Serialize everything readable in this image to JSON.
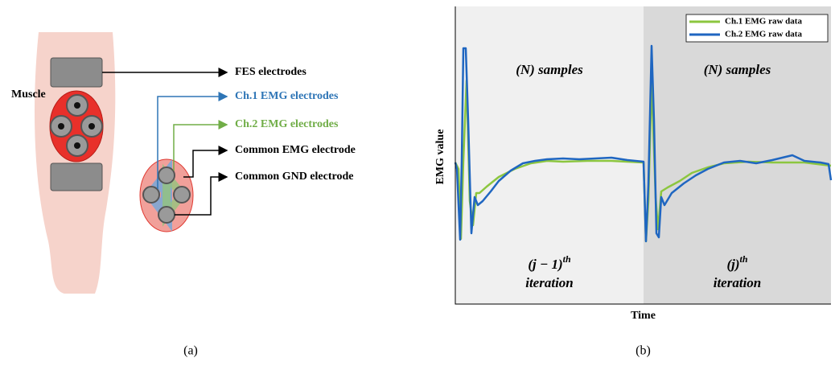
{
  "panel_a": {
    "label": "(a)",
    "muscle": "Muscle",
    "callouts": [
      {
        "text": "FES electrodes",
        "color": "#000000"
      },
      {
        "text": "Ch.1 EMG electrodes",
        "color": "#2e75b6"
      },
      {
        "text": "Ch.2 EMG electrodes",
        "color": "#70ad47"
      },
      {
        "text": "Common EMG electrode",
        "color": "#000000"
      },
      {
        "text": "Common GND electrode",
        "color": "#000000"
      }
    ]
  },
  "chart_data": {
    "type": "line",
    "panel_label": "(b)",
    "xlabel": "Time",
    "ylabel": "EMG value",
    "xlim": [
      0,
      467
    ],
    "ylim": [
      0,
      370
    ],
    "legend": "upper right",
    "iterations": [
      {
        "start": 0,
        "end": 234,
        "color": "#f0f0f0",
        "samples": "(N) samples",
        "index": "(j − 1)",
        "superscript": "th",
        "word": "iteration"
      },
      {
        "start": 234,
        "end": 467,
        "color": "#d9d9d9",
        "samples": "(N) samples",
        "index": "(j)",
        "superscript": "th",
        "word": "iteration"
      }
    ],
    "series": [
      {
        "name": "Ch.1 EMG raw data",
        "color": "#8cc63f",
        "x": [
          0,
          4,
          7,
          10,
          14,
          18,
          22,
          26,
          30,
          39,
          54,
          74,
          94,
          114,
          134,
          164,
          194,
          234,
          237,
          240,
          244,
          249,
          252,
          256,
          264,
          279,
          294,
          314,
          334,
          364,
          394,
          434,
          467
        ],
        "values": [
          176,
          168,
          81,
          178,
          278,
          128,
          98,
          138,
          138,
          146,
          158,
          168,
          175,
          178,
          177,
          178,
          178,
          176,
          78,
          128,
          278,
          133,
          93,
          140,
          145,
          153,
          163,
          170,
          175,
          177,
          176,
          176,
          172
        ]
      },
      {
        "name": "Ch.2 EMG raw data",
        "color": "#1f66c1",
        "x": [
          0,
          2,
          6,
          8,
          10,
          13,
          16,
          20,
          24,
          28,
          34,
          44,
          54,
          69,
          84,
          99,
          114,
          134,
          154,
          174,
          194,
          214,
          234,
          237,
          240,
          244,
          247,
          250,
          253,
          256,
          260,
          269,
          284,
          299,
          314,
          334,
          354,
          374,
          394,
          419,
          434,
          454,
          464,
          467
        ],
        "values": [
          176,
          168,
          80,
          178,
          318,
          318,
          228,
          88,
          133,
          123,
          128,
          140,
          153,
          166,
          175,
          178,
          180,
          181,
          180,
          181,
          182,
          179,
          177,
          78,
          148,
          321,
          228,
          88,
          83,
          133,
          123,
          138,
          150,
          160,
          168,
          176,
          178,
          175,
          179,
          185,
          178,
          176,
          174,
          154
        ]
      }
    ]
  }
}
